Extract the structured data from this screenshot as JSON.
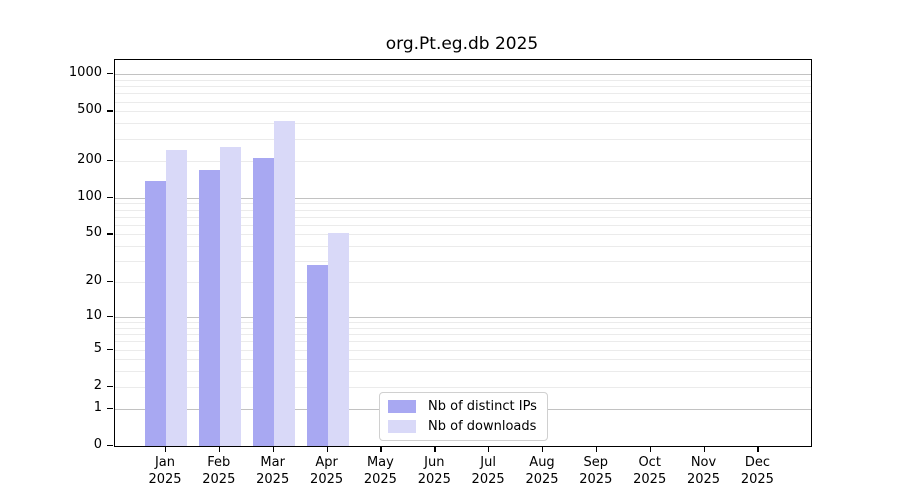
{
  "title": "org.Pt.eg.db 2025",
  "chart_data": {
    "type": "bar",
    "title": "org.Pt.eg.db 2025",
    "categories": [
      "Jan",
      "Feb",
      "Mar",
      "Apr",
      "May",
      "Jun",
      "Jul",
      "Aug",
      "Sep",
      "Oct",
      "Nov",
      "Dec"
    ],
    "year": "2025",
    "series": [
      {
        "name": "Nb of distinct IPs",
        "color": "#a8a8f2",
        "values": [
          136,
          167,
          208,
          28,
          null,
          null,
          null,
          null,
          null,
          null,
          null,
          null
        ]
      },
      {
        "name": "Nb of downloads",
        "color": "#d9d9f8",
        "values": [
          245,
          258,
          422,
          51,
          null,
          null,
          null,
          null,
          null,
          null,
          null,
          null
        ]
      }
    ],
    "y_ticks": [
      0,
      1,
      2,
      5,
      10,
      20,
      50,
      100,
      200,
      500,
      1000
    ],
    "y_scale": "log1p",
    "y_axis_top_value": 1300,
    "grid": true,
    "grid_major_values": [
      1,
      10,
      100,
      1000
    ],
    "grid_major_color": "#c2c2c2",
    "grid_minor_color": "#ebebeb",
    "legend_position": "bottom-center",
    "xlabel": "",
    "ylabel": ""
  }
}
